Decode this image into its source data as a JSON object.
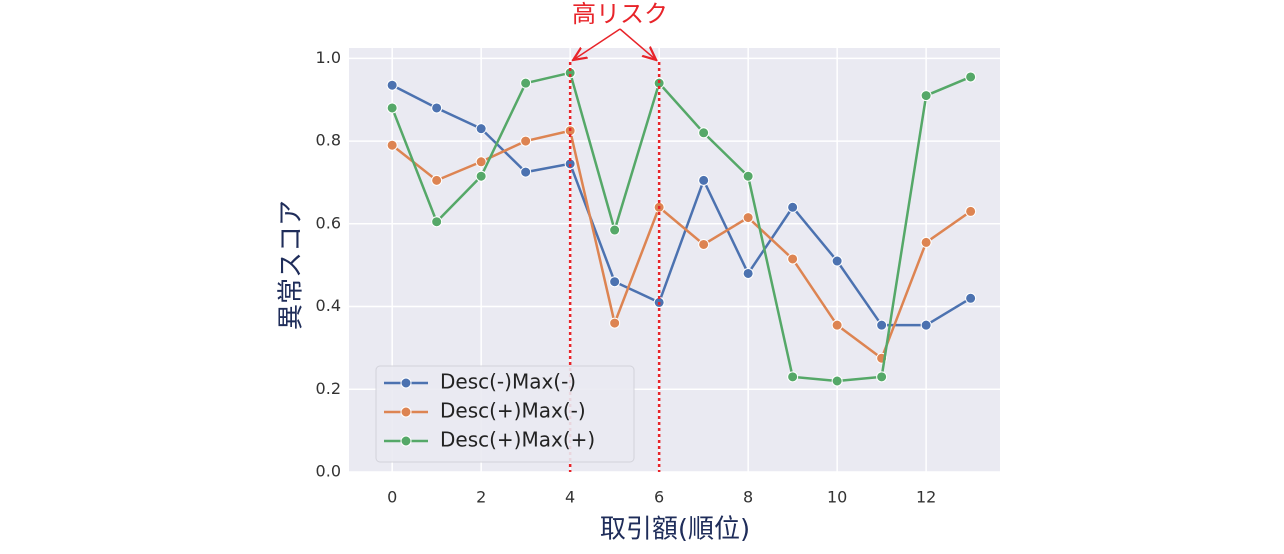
{
  "chart_data": {
    "type": "line",
    "annotation": "高リスク",
    "highlight_x": [
      4,
      6
    ],
    "xlabel": "取引額(順位)",
    "ylabel": "異常スコア",
    "x": [
      0,
      1,
      2,
      3,
      4,
      5,
      6,
      7,
      8,
      9,
      10,
      11,
      12,
      13
    ],
    "series": [
      {
        "name": "Desc(-)Max(-)",
        "color": "#4c72b0",
        "values": [
          0.935,
          0.88,
          0.83,
          0.725,
          0.745,
          0.46,
          0.41,
          0.705,
          0.48,
          0.64,
          0.51,
          0.355,
          0.355,
          0.42
        ]
      },
      {
        "name": "Desc(+)Max(-)",
        "color": "#dd8452",
        "values": [
          0.79,
          0.705,
          0.75,
          0.8,
          0.825,
          0.36,
          0.64,
          0.55,
          0.615,
          0.515,
          0.355,
          0.275,
          0.555,
          0.63
        ]
      },
      {
        "name": "Desc(+)Max(+)",
        "color": "#55a868",
        "values": [
          0.88,
          0.605,
          0.715,
          0.94,
          0.965,
          0.585,
          0.94,
          0.82,
          0.715,
          0.23,
          0.22,
          0.23,
          0.91,
          0.955
        ]
      }
    ],
    "xlim": [
      -0.97,
      13.66
    ],
    "ylim": [
      0,
      1.025
    ],
    "xticks": [
      0,
      2,
      4,
      6,
      8,
      10,
      12
    ],
    "yticks": [
      {
        "value": 0,
        "label": "0.0"
      },
      {
        "value": 0.2,
        "label": "0.2"
      },
      {
        "value": 0.4,
        "label": "0.4"
      },
      {
        "value": 0.6,
        "label": "0.6"
      },
      {
        "value": 0.8,
        "label": "0.8"
      },
      {
        "value": 1,
        "label": "1.0"
      }
    ],
    "grid": true,
    "legend": "lower left",
    "highlight_color": "#e8242a"
  }
}
